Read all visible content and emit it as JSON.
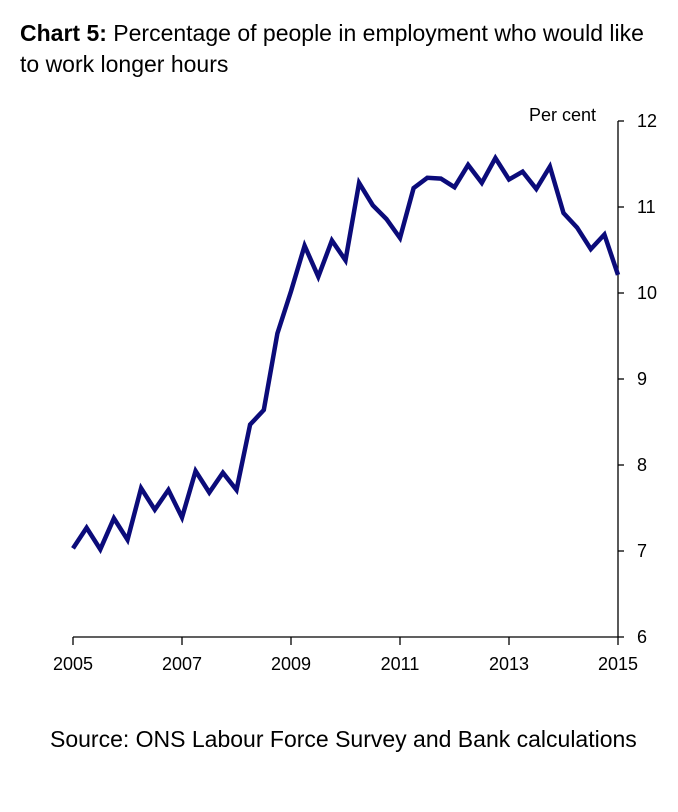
{
  "title": {
    "prefix": "Chart 5:",
    "text": "Percentage of people in employment who would like to work longer hours"
  },
  "source": "Source: ONS Labour Force Survey and Bank calculations",
  "colors": {
    "series": "#0b0b7a",
    "axis": "#000000"
  },
  "chart_data": {
    "type": "line",
    "title": "Percentage of people in employment who would like to work longer hours",
    "ylabel": "Per cent",
    "xlabel": "",
    "xlim": [
      2005,
      2015
    ],
    "ylim": [
      6,
      12
    ],
    "y_axis_side": "right",
    "grid": false,
    "legend": "none",
    "x_ticks": [
      "2005",
      "2007",
      "2009",
      "2011",
      "2013",
      "2015"
    ],
    "y_ticks": [
      "6",
      "7",
      "8",
      "9",
      "10",
      "11",
      "12"
    ],
    "x": [
      2005.0,
      2005.25,
      2005.5,
      2005.75,
      2006.0,
      2006.25,
      2006.5,
      2006.75,
      2007.0,
      2007.25,
      2007.5,
      2007.75,
      2008.0,
      2008.25,
      2008.5,
      2008.75,
      2009.0,
      2009.25,
      2009.5,
      2009.75,
      2010.0,
      2010.25,
      2010.5,
      2010.75,
      2011.0,
      2011.25,
      2011.5,
      2011.75,
      2012.0,
      2012.25,
      2012.5,
      2012.75,
      2013.0,
      2013.25,
      2013.5,
      2013.75,
      2014.0,
      2014.25,
      2014.5,
      2014.75,
      2015.0
    ],
    "series": [
      {
        "values": [
          7.03,
          7.27,
          7.02,
          7.38,
          7.13,
          7.73,
          7.48,
          7.71,
          7.39,
          7.93,
          7.68,
          7.91,
          7.71,
          8.47,
          8.64,
          9.53,
          10.02,
          10.55,
          10.19,
          10.61,
          10.38,
          11.28,
          11.02,
          10.86,
          10.64,
          11.22,
          11.34,
          11.33,
          11.23,
          11.49,
          11.28,
          11.57,
          11.32,
          11.41,
          11.21,
          11.47,
          10.93,
          10.76,
          10.51,
          10.68,
          10.21
        ]
      }
    ]
  }
}
